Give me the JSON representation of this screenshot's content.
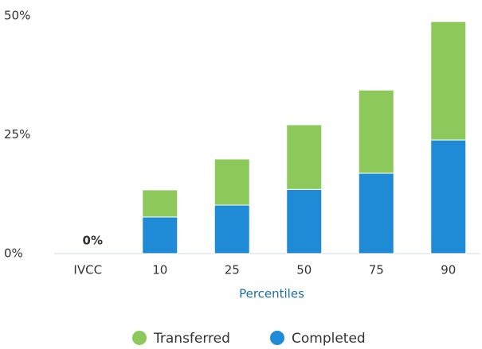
{
  "chart_data": {
    "type": "bar",
    "stacked": true,
    "x_label": "Percentiles",
    "categories": [
      "IVCC",
      "10",
      "25",
      "50",
      "75",
      "90"
    ],
    "series": [
      {
        "name": "Completed",
        "color": "#1f8bd6",
        "values": [
          0,
          7.7,
          10.2,
          13.5,
          16.9,
          23.9
        ],
        "value_labels": [
          "0%",
          null,
          null,
          null,
          null,
          null
        ]
      },
      {
        "name": "Transferred",
        "color": "#8dc95a",
        "values": [
          0,
          5.7,
          9.7,
          13.6,
          17.5,
          24.9
        ]
      }
    ],
    "legend_order": [
      1,
      0
    ],
    "ylim": [
      0,
      50
    ],
    "yticks": [
      {
        "value": 0,
        "label": "0%"
      },
      {
        "value": 25,
        "label": "25%"
      },
      {
        "value": 50,
        "label": "50%"
      }
    ],
    "grid": false,
    "legend": "bottom"
  }
}
